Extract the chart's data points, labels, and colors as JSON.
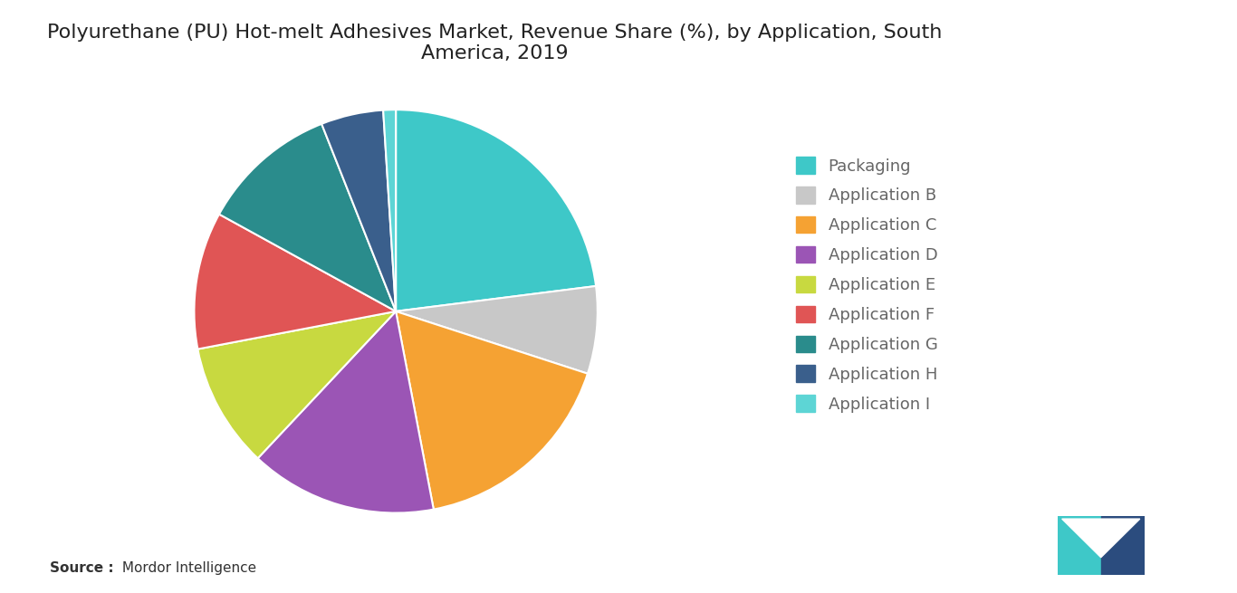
{
  "title": "Polyurethane (PU) Hot-melt Adhesives Market, Revenue Share (%), by Application, South\nAmerica, 2019",
  "labels": [
    "Packaging",
    "Application B",
    "Application C",
    "Application D",
    "Application E",
    "Application F",
    "Application G",
    "Application H",
    "Application I"
  ],
  "values": [
    23,
    7,
    17,
    15,
    10,
    11,
    11,
    5,
    1
  ],
  "colors": [
    "#3EC8C8",
    "#C8C8C8",
    "#F5A233",
    "#9B55B5",
    "#C8D940",
    "#E05555",
    "#2A8C8C",
    "#3A5F8C",
    "#5DD5D5"
  ],
  "background_color": "#FFFFFF",
  "title_fontsize": 16,
  "legend_fontsize": 13,
  "source_text_bold": "Source :",
  "source_text_normal": " Mordor Intelligence"
}
